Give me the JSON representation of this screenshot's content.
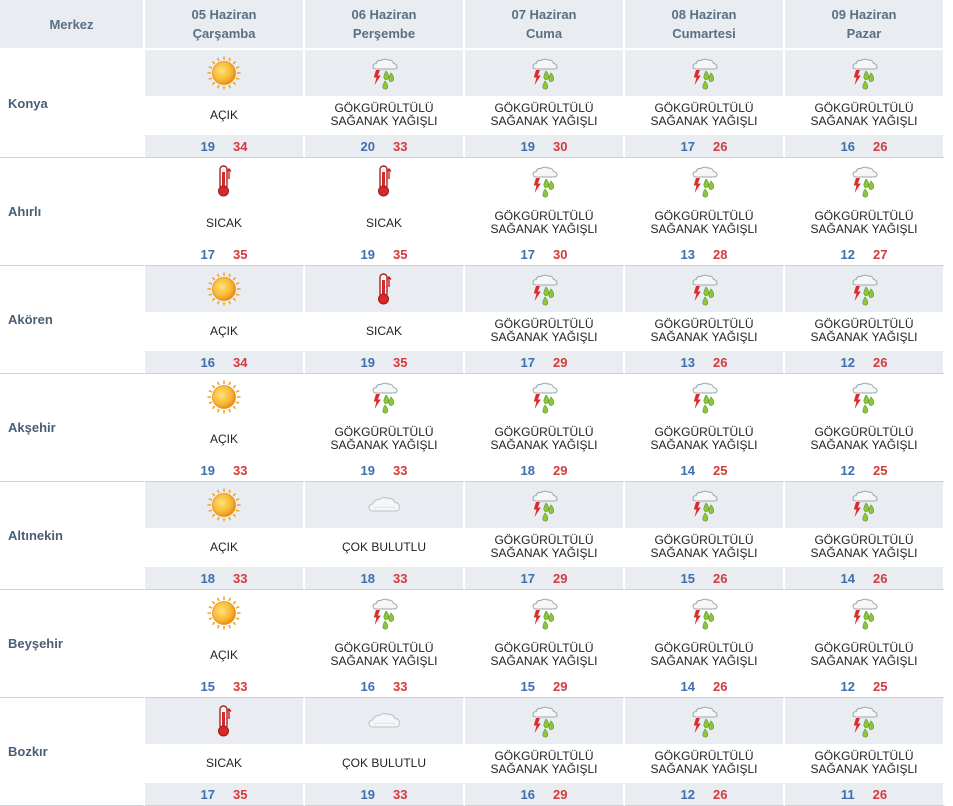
{
  "header": {
    "city_col": "Merkez",
    "days": [
      {
        "date": "05 Haziran",
        "weekday": "Çarşamba"
      },
      {
        "date": "06 Haziran",
        "weekday": "Perşembe"
      },
      {
        "date": "07 Haziran",
        "weekday": "Cuma"
      },
      {
        "date": "08 Haziran",
        "weekday": "Cumartesi"
      },
      {
        "date": "09 Haziran",
        "weekday": "Pazar"
      }
    ]
  },
  "rows": [
    {
      "city": "Konya",
      "days": [
        {
          "icon": "sun-icon",
          "desc": "AÇIK",
          "min": "19",
          "max": "34"
        },
        {
          "icon": "thunderstorm-icon",
          "desc": "GÖKGÜRÜLTÜLÜ SAĞANAK YAĞIŞLI",
          "min": "20",
          "max": "33"
        },
        {
          "icon": "thunderstorm-icon",
          "desc": "GÖKGÜRÜLTÜLÜ SAĞANAK YAĞIŞLI",
          "min": "19",
          "max": "30"
        },
        {
          "icon": "thunderstorm-icon",
          "desc": "GÖKGÜRÜLTÜLÜ SAĞANAK YAĞIŞLI",
          "min": "17",
          "max": "26"
        },
        {
          "icon": "thunderstorm-icon",
          "desc": "GÖKGÜRÜLTÜLÜ SAĞANAK YAĞIŞLI",
          "min": "16",
          "max": "26"
        }
      ]
    },
    {
      "city": "Ahırlı",
      "days": [
        {
          "icon": "thermometer-icon",
          "desc": "SICAK",
          "min": "17",
          "max": "35"
        },
        {
          "icon": "thermometer-icon",
          "desc": "SICAK",
          "min": "19",
          "max": "35"
        },
        {
          "icon": "thunderstorm-icon",
          "desc": "GÖKGÜRÜLTÜLÜ SAĞANAK YAĞIŞLI",
          "min": "17",
          "max": "30"
        },
        {
          "icon": "thunderstorm-icon",
          "desc": "GÖKGÜRÜLTÜLÜ SAĞANAK YAĞIŞLI",
          "min": "13",
          "max": "28"
        },
        {
          "icon": "thunderstorm-icon",
          "desc": "GÖKGÜRÜLTÜLÜ SAĞANAK YAĞIŞLI",
          "min": "12",
          "max": "27"
        }
      ]
    },
    {
      "city": "Akören",
      "days": [
        {
          "icon": "sun-icon",
          "desc": "AÇIK",
          "min": "16",
          "max": "34"
        },
        {
          "icon": "thermometer-icon",
          "desc": "SICAK",
          "min": "19",
          "max": "35"
        },
        {
          "icon": "thunderstorm-icon",
          "desc": "GÖKGÜRÜLTÜLÜ SAĞANAK YAĞIŞLI",
          "min": "17",
          "max": "29"
        },
        {
          "icon": "thunderstorm-icon",
          "desc": "GÖKGÜRÜLTÜLÜ SAĞANAK YAĞIŞLI",
          "min": "13",
          "max": "26"
        },
        {
          "icon": "thunderstorm-icon",
          "desc": "GÖKGÜRÜLTÜLÜ SAĞANAK YAĞIŞLI",
          "min": "12",
          "max": "26"
        }
      ]
    },
    {
      "city": "Akşehir",
      "days": [
        {
          "icon": "sun-icon",
          "desc": "AÇIK",
          "min": "19",
          "max": "33"
        },
        {
          "icon": "thunderstorm-icon",
          "desc": "GÖKGÜRÜLTÜLÜ SAĞANAK YAĞIŞLI",
          "min": "19",
          "max": "33"
        },
        {
          "icon": "thunderstorm-icon",
          "desc": "GÖKGÜRÜLTÜLÜ SAĞANAK YAĞIŞLI",
          "min": "18",
          "max": "29"
        },
        {
          "icon": "thunderstorm-icon",
          "desc": "GÖKGÜRÜLTÜLÜ SAĞANAK YAĞIŞLI",
          "min": "14",
          "max": "25"
        },
        {
          "icon": "thunderstorm-icon",
          "desc": "GÖKGÜRÜLTÜLÜ SAĞANAK YAĞIŞLI",
          "min": "12",
          "max": "25"
        }
      ]
    },
    {
      "city": "Altınekin",
      "days": [
        {
          "icon": "sun-icon",
          "desc": "AÇIK",
          "min": "18",
          "max": "33"
        },
        {
          "icon": "cloud-icon",
          "desc": "ÇOK BULUTLU",
          "min": "18",
          "max": "33"
        },
        {
          "icon": "thunderstorm-icon",
          "desc": "GÖKGÜRÜLTÜLÜ SAĞANAK YAĞIŞLI",
          "min": "17",
          "max": "29"
        },
        {
          "icon": "thunderstorm-icon",
          "desc": "GÖKGÜRÜLTÜLÜ SAĞANAK YAĞIŞLI",
          "min": "15",
          "max": "26"
        },
        {
          "icon": "thunderstorm-icon",
          "desc": "GÖKGÜRÜLTÜLÜ SAĞANAK YAĞIŞLI",
          "min": "14",
          "max": "26"
        }
      ]
    },
    {
      "city": "Beyşehir",
      "days": [
        {
          "icon": "sun-icon",
          "desc": "AÇIK",
          "min": "15",
          "max": "33"
        },
        {
          "icon": "thunderstorm-icon",
          "desc": "GÖKGÜRÜLTÜLÜ SAĞANAK YAĞIŞLI",
          "min": "16",
          "max": "33"
        },
        {
          "icon": "thunderstorm-icon",
          "desc": "GÖKGÜRÜLTÜLÜ SAĞANAK YAĞIŞLI",
          "min": "15",
          "max": "29"
        },
        {
          "icon": "thunderstorm-icon",
          "desc": "GÖKGÜRÜLTÜLÜ SAĞANAK YAĞIŞLI",
          "min": "14",
          "max": "26"
        },
        {
          "icon": "thunderstorm-icon",
          "desc": "GÖKGÜRÜLTÜLÜ SAĞANAK YAĞIŞLI",
          "min": "12",
          "max": "25"
        }
      ]
    },
    {
      "city": "Bozkır",
      "days": [
        {
          "icon": "thermometer-icon",
          "desc": "SICAK",
          "min": "17",
          "max": "35"
        },
        {
          "icon": "cloud-icon",
          "desc": "ÇOK BULUTLU",
          "min": "19",
          "max": "33"
        },
        {
          "icon": "thunderstorm-icon",
          "desc": "GÖKGÜRÜLTÜLÜ SAĞANAK YAĞIŞLI",
          "min": "16",
          "max": "29"
        },
        {
          "icon": "thunderstorm-icon",
          "desc": "GÖKGÜRÜLTÜLÜ SAĞANAK YAĞIŞLI",
          "min": "12",
          "max": "26"
        },
        {
          "icon": "thunderstorm-icon",
          "desc": "GÖKGÜRÜLTÜLÜ SAĞANAK YAĞIŞLI",
          "min": "11",
          "max": "26"
        }
      ]
    }
  ],
  "colors": {
    "shade": "#e9edf1",
    "min_temp": "#3b6fae",
    "max_temp": "#d43b3b",
    "header_text": "#5a6f84"
  }
}
